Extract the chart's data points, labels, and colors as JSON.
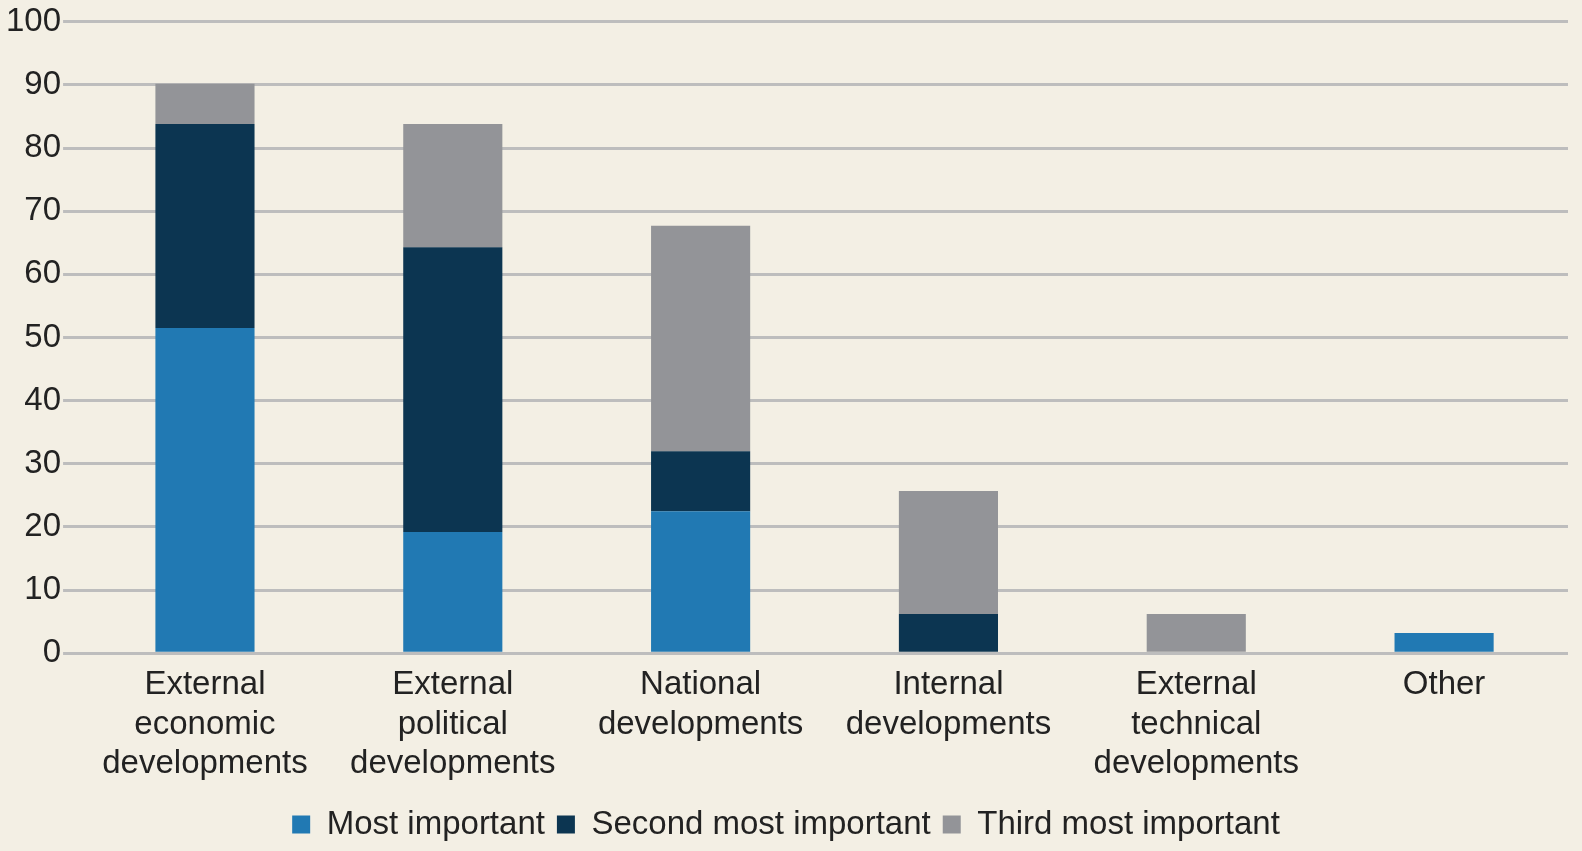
{
  "chart_data": {
    "type": "bar",
    "stacked": true,
    "categories": [
      "External economic developments",
      "External political developments",
      "National developments",
      "Internal developments",
      "External technical developments",
      "Other"
    ],
    "series": [
      {
        "name": "Most important",
        "color": "#2179b3",
        "values": [
          51.5,
          19.2,
          22.5,
          0,
          0,
          3.2
        ]
      },
      {
        "name": "Second most important",
        "color": "#0c3551",
        "values": [
          32.3,
          45.1,
          9.5,
          6.2,
          0,
          0
        ]
      },
      {
        "name": "Third most important",
        "color": "#939498",
        "values": [
          6.4,
          19.5,
          35.7,
          19.5,
          6.2,
          0
        ]
      }
    ],
    "ylim": [
      0,
      100
    ],
    "yticks": [
      0,
      10,
      20,
      30,
      40,
      50,
      60,
      70,
      80,
      90,
      100
    ],
    "grid": "y",
    "legend": "bottom"
  }
}
